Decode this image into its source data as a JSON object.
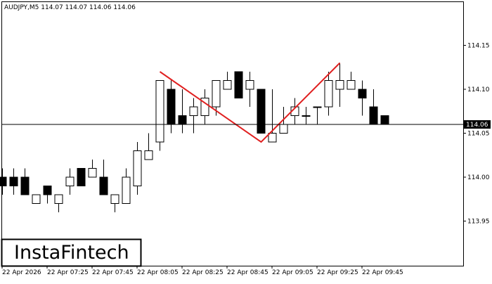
{
  "chart_data": {
    "type": "candlestick",
    "title": "AUDJPY,M5  114.07 114.07 114.06 114.06",
    "categories": [
      "22 Apr 2026",
      null,
      null,
      null,
      "22 Apr 07:25",
      null,
      null,
      null,
      "22 Apr 07:45",
      null,
      null,
      null,
      "22 Apr 08:05",
      null,
      null,
      null,
      "22 Apr 08:25",
      null,
      null,
      null,
      "22 Apr 08:45",
      null,
      null,
      null,
      "22 Apr 09:05",
      null,
      null,
      null,
      "22 Apr 09:25",
      null,
      null,
      null,
      "22 Apr 09:45",
      null,
      null
    ],
    "open": [
      114.0,
      114.0,
      114.0,
      113.97,
      113.99,
      113.97,
      113.99,
      114.01,
      114.0,
      114.0,
      113.97,
      113.97,
      113.99,
      114.02,
      114.04,
      114.1,
      114.07,
      114.07,
      114.07,
      114.08,
      114.1,
      114.12,
      114.1,
      114.1,
      114.04,
      114.05,
      114.07,
      114.07,
      114.08,
      114.08,
      114.1,
      114.1,
      114.1,
      114.08,
      114.07
    ],
    "high": [
      114.01,
      114.01,
      114.01,
      113.98,
      113.99,
      113.98,
      114.01,
      114.01,
      114.02,
      114.02,
      113.98,
      114.01,
      114.04,
      114.05,
      114.11,
      114.11,
      114.1,
      114.09,
      114.1,
      114.11,
      114.12,
      114.12,
      114.12,
      114.1,
      114.1,
      114.08,
      114.09,
      114.08,
      114.08,
      114.12,
      114.13,
      114.12,
      114.11,
      114.1,
      114.07
    ],
    "low": [
      113.98,
      113.98,
      113.98,
      113.97,
      113.97,
      113.96,
      113.98,
      113.99,
      114.0,
      113.98,
      113.96,
      113.97,
      113.98,
      114.02,
      114.03,
      114.05,
      114.05,
      114.05,
      114.06,
      114.07,
      114.1,
      114.09,
      114.08,
      114.05,
      114.04,
      114.05,
      114.06,
      114.06,
      114.06,
      114.07,
      114.08,
      114.1,
      114.07,
      114.06,
      114.06
    ],
    "close": [
      113.99,
      113.99,
      113.98,
      113.98,
      113.98,
      113.98,
      114.0,
      113.99,
      114.01,
      113.98,
      113.98,
      114.0,
      114.03,
      114.03,
      114.11,
      114.06,
      114.06,
      114.08,
      114.09,
      114.11,
      114.11,
      114.09,
      114.11,
      114.05,
      114.05,
      114.06,
      114.08,
      114.07,
      114.08,
      114.11,
      114.11,
      114.11,
      114.09,
      114.06,
      114.06
    ],
    "up_color": "#ffffff",
    "down_color": "#000000",
    "ylim": [
      113.9,
      114.2
    ],
    "yticks": [
      113.95,
      {
        "value": 114.0,
        "label": "114.00"
      },
      114.05,
      {
        "value": 114.1,
        "label": "114.10"
      },
      114.15
    ],
    "current_price": {
      "value": 114.06,
      "label": "114.06"
    },
    "pattern": {
      "color": "#e02020",
      "x": [
        14,
        23,
        30
      ],
      "y": [
        114.12,
        114.04,
        114.13
      ]
    },
    "logo": "InstaFintech"
  }
}
